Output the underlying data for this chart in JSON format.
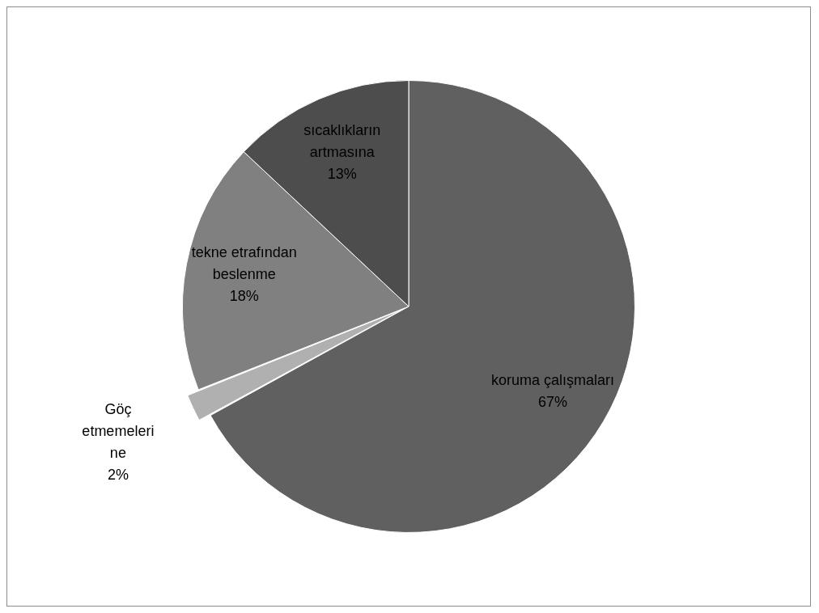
{
  "chart_data": {
    "type": "pie",
    "categories": [
      "koruma çalışmaları",
      "Göç etmemelerine",
      "tekne etrafından beslenme",
      "sıcaklıkların artmasına"
    ],
    "values": [
      67,
      2,
      18,
      13
    ],
    "colors": [
      "#606060",
      "#b0b0b0",
      "#808080",
      "#4d4d4d"
    ],
    "value_labels": [
      "67%",
      "2%",
      "18%",
      "13%"
    ],
    "legend": false
  }
}
